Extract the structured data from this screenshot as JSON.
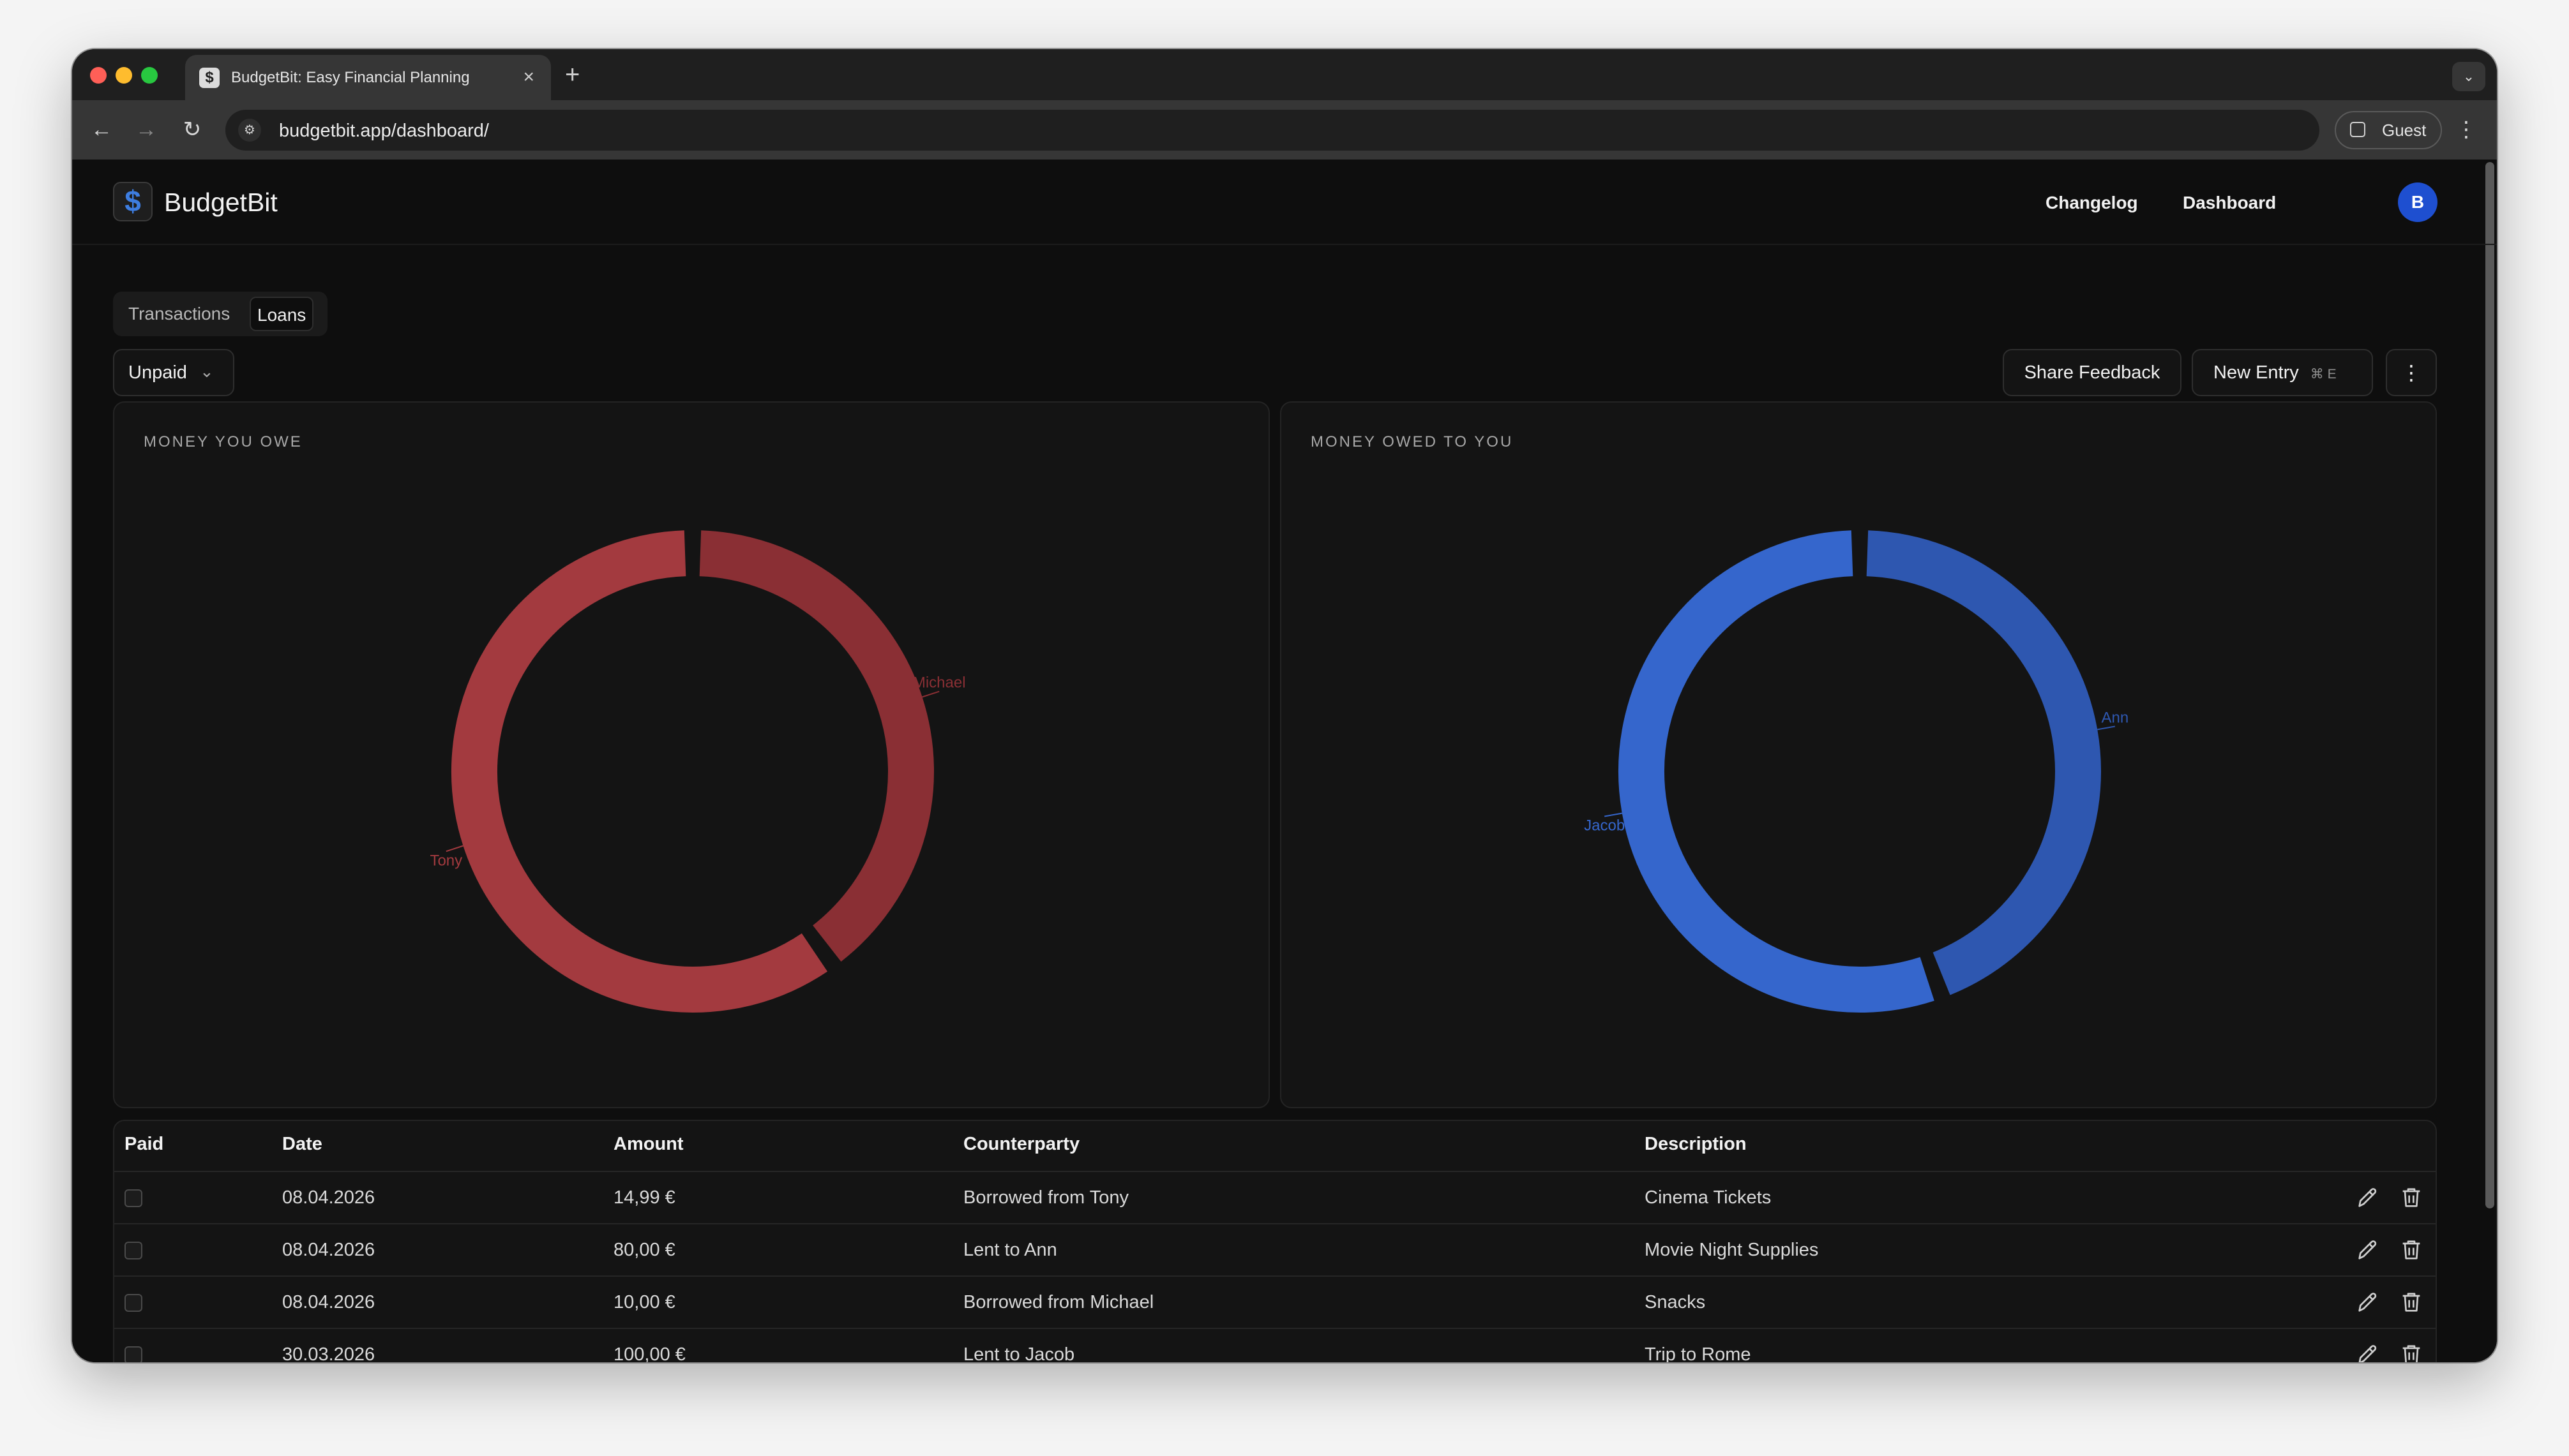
{
  "browser": {
    "tab_title": "BudgetBit: Easy Financial Planning",
    "favicon_glyph": "$",
    "url": "budgetbit.app/dashboard/",
    "profile_label": "Guest"
  },
  "header": {
    "brand": "BudgetBit",
    "logo_glyph": "$",
    "nav": [
      "Changelog",
      "Dashboard"
    ],
    "avatar_initial": "B"
  },
  "tabs": {
    "items": [
      "Transactions",
      "Loans"
    ],
    "active": "Loans"
  },
  "filter": {
    "selected": "Unpaid"
  },
  "actions": {
    "share_feedback": "Share Feedback",
    "new_entry": "New Entry",
    "new_entry_shortcut": "⌘ E"
  },
  "charts": {
    "owe": {
      "title": "MONEY YOU OWE",
      "color": "#a33a3f",
      "slices": [
        {
          "label": "Tony",
          "value": 14.99,
          "color": "#a33a3f"
        },
        {
          "label": "Michael",
          "value": 10.0,
          "color": "#8a2f34"
        }
      ]
    },
    "owed": {
      "title": "MONEY OWED TO YOU",
      "color": "#3566cc",
      "slices": [
        {
          "label": "Jacob",
          "value": 100.0,
          "color": "#3566cc"
        },
        {
          "label": "Ann",
          "value": 80.0,
          "color": "#2e57b0"
        }
      ]
    }
  },
  "table": {
    "columns": [
      "Paid",
      "Date",
      "Amount",
      "Counterparty",
      "Description"
    ],
    "rows": [
      {
        "paid": false,
        "date": "08.04.2026",
        "amount": "14,99 €",
        "counterparty": "Borrowed from Tony",
        "description": "Cinema Tickets"
      },
      {
        "paid": false,
        "date": "08.04.2026",
        "amount": "80,00 €",
        "counterparty": "Lent to Ann",
        "description": "Movie Night Supplies"
      },
      {
        "paid": false,
        "date": "08.04.2026",
        "amount": "10,00 €",
        "counterparty": "Borrowed from Michael",
        "description": "Snacks"
      },
      {
        "paid": false,
        "date": "30.03.2026",
        "amount": "100,00 €",
        "counterparty": "Lent to Jacob",
        "description": "Trip to Rome"
      }
    ]
  },
  "icons": {
    "edit": "pencil-icon",
    "delete": "trash-icon",
    "dropdown": "chevron-down-icon",
    "more": "vertical-ellipsis-icon"
  }
}
